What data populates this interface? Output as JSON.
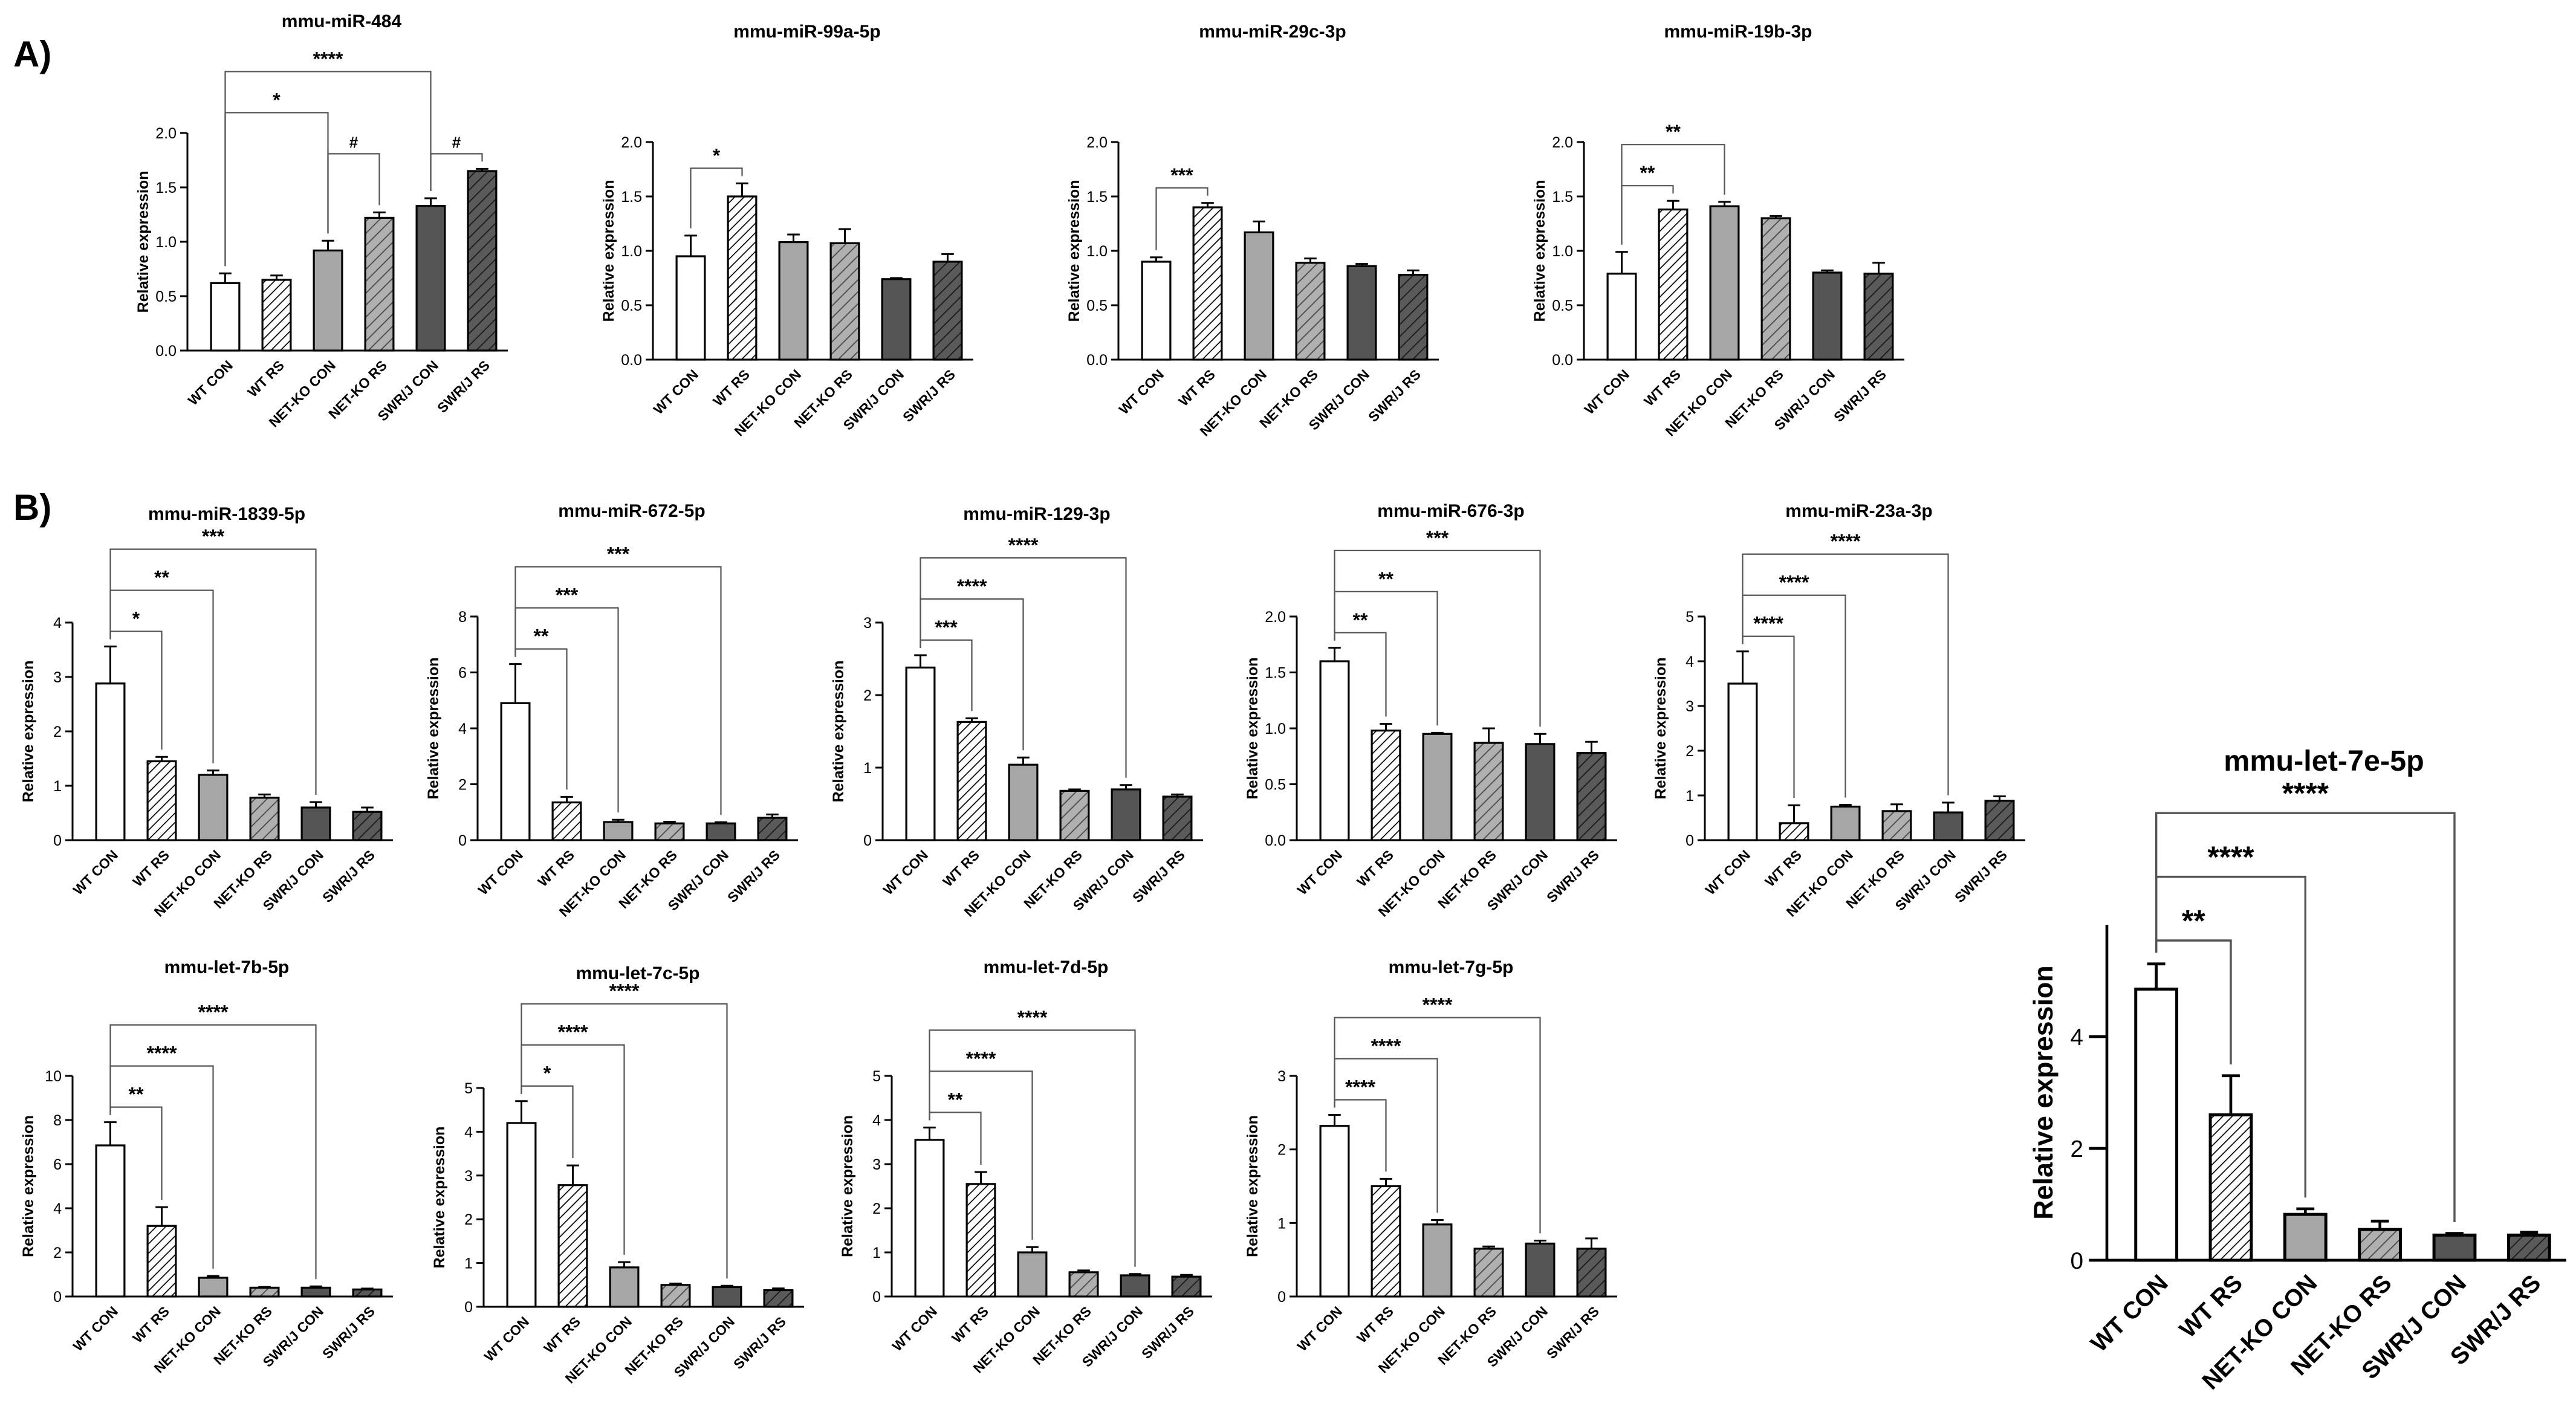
{
  "panel_labels": [
    "A)",
    "B)"
  ],
  "patterns": {
    "WT CON": {
      "fill": "#ffffff",
      "hatch": null,
      "hatch_color": null
    },
    "WT RS": {
      "fill": "#ffffff",
      "hatch": "dense",
      "hatch_color": "#000000"
    },
    "NET-KO CON": {
      "fill": "#a6a6a6",
      "hatch": null,
      "hatch_color": null
    },
    "NET-KO RS": {
      "fill": "#b0b0b0",
      "hatch": "normal",
      "hatch_color": "#4a4a4a"
    },
    "SWR/J CON": {
      "fill": "#555555",
      "hatch": null,
      "hatch_color": null
    },
    "SWR/J RS": {
      "fill": "#5a5a5a",
      "hatch": "normal",
      "hatch_color": "#1a1a1a"
    }
  },
  "chart_data": [
    {
      "type": "bar",
      "title": "mmu-miR-484",
      "ylabel": "Relative expression",
      "categories": [
        "WT CON",
        "WT RS",
        "NET-KO CON",
        "NET-KO RS",
        "SWR/J CON",
        "SWR/J RS"
      ],
      "values": [
        0.62,
        0.65,
        0.92,
        1.22,
        1.33,
        1.65
      ],
      "errors": [
        0.09,
        0.04,
        0.09,
        0.05,
        0.07,
        0.02
      ],
      "ylim": [
        0,
        2.0
      ],
      "yticks": [
        "0.0",
        "0.5",
        "1.0",
        "1.5",
        "2.0"
      ],
      "annotations": [
        {
          "from": 0,
          "to": 2,
          "label": "*",
          "level": 2
        },
        {
          "from": 2,
          "to": 3,
          "label": "#",
          "level": 1
        },
        {
          "from": 0,
          "to": 4,
          "label": "****",
          "level": 3
        },
        {
          "from": 4,
          "to": 5,
          "label": "#",
          "level": 1
        }
      ]
    },
    {
      "type": "bar",
      "title": "mmu-miR-99a-5p",
      "ylabel": "Relative expression",
      "categories": [
        "WT CON",
        "WT RS",
        "NET-KO CON",
        "NET-KO RS",
        "SWR/J CON",
        "SWR/J RS"
      ],
      "values": [
        0.95,
        1.5,
        1.08,
        1.07,
        0.74,
        0.9
      ],
      "errors": [
        0.19,
        0.12,
        0.07,
        0.13,
        0.01,
        0.07
      ],
      "ylim": [
        0,
        2.0
      ],
      "yticks": [
        "0.0",
        "0.5",
        "1.0",
        "1.5",
        "2.0"
      ],
      "annotations": [
        {
          "from": 0,
          "to": 1,
          "label": "*",
          "level": 1
        }
      ]
    },
    {
      "type": "bar",
      "title": "mmu-miR-29c-3p",
      "ylabel": "Relative expression",
      "categories": [
        "WT CON",
        "WT RS",
        "NET-KO CON",
        "NET-KO RS",
        "SWR/J CON",
        "SWR/J RS"
      ],
      "values": [
        0.9,
        1.4,
        1.17,
        0.89,
        0.86,
        0.78
      ],
      "errors": [
        0.04,
        0.04,
        0.1,
        0.04,
        0.02,
        0.04
      ],
      "ylim": [
        0,
        2.0
      ],
      "yticks": [
        "0.0",
        "0.5",
        "1.0",
        "1.5",
        "2.0"
      ],
      "annotations": [
        {
          "from": 0,
          "to": 1,
          "label": "***",
          "level": 1
        }
      ]
    },
    {
      "type": "bar",
      "title": "mmu-miR-19b-3p",
      "ylabel": "Relative expression",
      "categories": [
        "WT CON",
        "WT RS",
        "NET-KO CON",
        "NET-KO RS",
        "SWR/J CON",
        "SWR/J RS"
      ],
      "values": [
        0.79,
        1.38,
        1.41,
        1.3,
        0.8,
        0.79
      ],
      "errors": [
        0.2,
        0.08,
        0.04,
        0.02,
        0.02,
        0.1
      ],
      "ylim": [
        0,
        2.0
      ],
      "yticks": [
        "0.0",
        "0.5",
        "1.0",
        "1.5",
        "2.0"
      ],
      "annotations": [
        {
          "from": 0,
          "to": 1,
          "label": "**",
          "level": 1
        },
        {
          "from": 0,
          "to": 2,
          "label": "**",
          "level": 2
        }
      ]
    },
    {
      "type": "bar",
      "title": "mmu-miR-1839-5p",
      "ylabel": "Relative expression",
      "categories": [
        "WT CON",
        "WT RS",
        "NET-KO CON",
        "NET-KO RS",
        "SWR/J CON",
        "SWR/J RS"
      ],
      "values": [
        2.88,
        1.45,
        1.2,
        0.78,
        0.6,
        0.52
      ],
      "errors": [
        0.68,
        0.08,
        0.08,
        0.06,
        0.1,
        0.08
      ],
      "ylim": [
        0,
        4
      ],
      "yticks": [
        "0",
        "1",
        "2",
        "3",
        "4"
      ],
      "annotations": [
        {
          "from": 0,
          "to": 1,
          "label": "*",
          "level": 1
        },
        {
          "from": 0,
          "to": 2,
          "label": "**",
          "level": 2
        },
        {
          "from": 0,
          "to": 4,
          "label": "***",
          "level": 3
        }
      ]
    },
    {
      "type": "bar",
      "title": "mmu-miR-672-5p",
      "ylabel": "Relative expression",
      "categories": [
        "WT CON",
        "WT RS",
        "NET-KO CON",
        "NET-KO RS",
        "SWR/J CON",
        "SWR/J RS"
      ],
      "values": [
        4.9,
        1.35,
        0.65,
        0.6,
        0.6,
        0.8
      ],
      "errors": [
        1.4,
        0.2,
        0.08,
        0.06,
        0.04,
        0.12
      ],
      "ylim": [
        0,
        8
      ],
      "yticks": [
        "0",
        "2",
        "4",
        "6",
        "8"
      ],
      "annotations": [
        {
          "from": 0,
          "to": 1,
          "label": "**",
          "level": 1
        },
        {
          "from": 0,
          "to": 2,
          "label": "***",
          "level": 2
        },
        {
          "from": 0,
          "to": 4,
          "label": "***",
          "level": 3
        }
      ]
    },
    {
      "type": "bar",
      "title": "mmu-miR-129-3p",
      "ylabel": "Relative expression",
      "categories": [
        "WT CON",
        "WT RS",
        "NET-KO CON",
        "NET-KO RS",
        "SWR/J CON",
        "SWR/J RS"
      ],
      "values": [
        2.38,
        1.63,
        1.04,
        0.68,
        0.7,
        0.6
      ],
      "errors": [
        0.17,
        0.05,
        0.1,
        0.02,
        0.06,
        0.03
      ],
      "ylim": [
        0,
        3
      ],
      "yticks": [
        "0",
        "1",
        "2",
        "3"
      ],
      "annotations": [
        {
          "from": 0,
          "to": 1,
          "label": "***",
          "level": 1
        },
        {
          "from": 0,
          "to": 2,
          "label": "****",
          "level": 2
        },
        {
          "from": 0,
          "to": 4,
          "label": "****",
          "level": 3
        }
      ]
    },
    {
      "type": "bar",
      "title": "mmu-miR-676-3p",
      "ylabel": "Relative expression",
      "categories": [
        "WT CON",
        "WT RS",
        "NET-KO CON",
        "NET-KO RS",
        "SWR/J CON",
        "SWR/J RS"
      ],
      "values": [
        1.6,
        0.98,
        0.95,
        0.87,
        0.86,
        0.78
      ],
      "errors": [
        0.12,
        0.06,
        0.01,
        0.13,
        0.09,
        0.1
      ],
      "ylim": [
        0,
        2.0
      ],
      "yticks": [
        "0.0",
        "0.5",
        "1.0",
        "1.5",
        "2.0"
      ],
      "annotations": [
        {
          "from": 0,
          "to": 1,
          "label": "**",
          "level": 1
        },
        {
          "from": 0,
          "to": 2,
          "label": "**",
          "level": 2
        },
        {
          "from": 0,
          "to": 4,
          "label": "***",
          "level": 3
        }
      ]
    },
    {
      "type": "bar",
      "title": "mmu-miR-23a-3p",
      "ylabel": "Relative expression",
      "categories": [
        "WT CON",
        "WT RS",
        "NET-KO CON",
        "NET-KO RS",
        "SWR/J CON",
        "SWR/J RS"
      ],
      "values": [
        3.5,
        0.38,
        0.75,
        0.65,
        0.62,
        0.88
      ],
      "errors": [
        0.72,
        0.4,
        0.04,
        0.15,
        0.22,
        0.1
      ],
      "ylim": [
        0,
        5
      ],
      "yticks": [
        "0",
        "1",
        "2",
        "3",
        "4",
        "5"
      ],
      "annotations": [
        {
          "from": 0,
          "to": 1,
          "label": "****",
          "level": 1
        },
        {
          "from": 0,
          "to": 2,
          "label": "****",
          "level": 2
        },
        {
          "from": 0,
          "to": 4,
          "label": "****",
          "level": 3
        }
      ]
    },
    {
      "type": "bar",
      "title": "mmu-let-7b-5p",
      "ylabel": "Relative expression",
      "categories": [
        "WT CON",
        "WT RS",
        "NET-KO CON",
        "NET-KO RS",
        "SWR/J CON",
        "SWR/J RS"
      ],
      "values": [
        6.85,
        3.2,
        0.85,
        0.4,
        0.4,
        0.32
      ],
      "errors": [
        1.05,
        0.85,
        0.08,
        0.03,
        0.06,
        0.04
      ],
      "ylim": [
        0,
        10
      ],
      "yticks": [
        "0",
        "2",
        "4",
        "6",
        "8",
        "10"
      ],
      "annotations": [
        {
          "from": 0,
          "to": 1,
          "label": "**",
          "level": 1
        },
        {
          "from": 0,
          "to": 2,
          "label": "****",
          "level": 2
        },
        {
          "from": 0,
          "to": 4,
          "label": "****",
          "level": 3
        }
      ]
    },
    {
      "type": "bar",
      "title": "mmu-let-7c-5p",
      "ylabel": "Relative expression",
      "categories": [
        "WT CON",
        "WT RS",
        "NET-KO CON",
        "NET-KO RS",
        "SWR/J CON",
        "SWR/J RS"
      ],
      "values": [
        4.2,
        2.78,
        0.9,
        0.5,
        0.45,
        0.38
      ],
      "errors": [
        0.5,
        0.45,
        0.12,
        0.03,
        0.03,
        0.04
      ],
      "ylim": [
        0,
        5
      ],
      "yticks": [
        "0",
        "1",
        "2",
        "3",
        "4",
        "5"
      ],
      "annotations": [
        {
          "from": 0,
          "to": 1,
          "label": "*",
          "level": 1
        },
        {
          "from": 0,
          "to": 2,
          "label": "****",
          "level": 2
        },
        {
          "from": 0,
          "to": 4,
          "label": "****",
          "level": 3
        }
      ]
    },
    {
      "type": "bar",
      "title": "mmu-let-7d-5p",
      "ylabel": "Relative expression",
      "categories": [
        "WT CON",
        "WT RS",
        "NET-KO CON",
        "NET-KO RS",
        "SWR/J CON",
        "SWR/J RS"
      ],
      "values": [
        3.55,
        2.55,
        1.0,
        0.55,
        0.48,
        0.45
      ],
      "errors": [
        0.28,
        0.27,
        0.12,
        0.04,
        0.03,
        0.04
      ],
      "ylim": [
        0,
        5
      ],
      "yticks": [
        "0",
        "1",
        "2",
        "3",
        "4",
        "5"
      ],
      "annotations": [
        {
          "from": 0,
          "to": 1,
          "label": "**",
          "level": 1
        },
        {
          "from": 0,
          "to": 2,
          "label": "****",
          "level": 2
        },
        {
          "from": 0,
          "to": 4,
          "label": "****",
          "level": 3
        }
      ]
    },
    {
      "type": "bar",
      "title": "mmu-let-7g-5p",
      "ylabel": "Relative expression",
      "categories": [
        "WT CON",
        "WT RS",
        "NET-KO CON",
        "NET-KO RS",
        "SWR/J CON",
        "SWR/J RS"
      ],
      "values": [
        2.32,
        1.5,
        0.98,
        0.65,
        0.72,
        0.65
      ],
      "errors": [
        0.15,
        0.1,
        0.06,
        0.03,
        0.04,
        0.14
      ],
      "ylim": [
        0,
        3
      ],
      "yticks": [
        "0",
        "1",
        "2",
        "3"
      ],
      "annotations": [
        {
          "from": 0,
          "to": 1,
          "label": "****",
          "level": 1
        },
        {
          "from": 0,
          "to": 2,
          "label": "****",
          "level": 2
        },
        {
          "from": 0,
          "to": 4,
          "label": "****",
          "level": 3
        }
      ]
    },
    {
      "type": "bar",
      "title": "mmu-let-7e-5p",
      "ylabel": "Relative expression",
      "categories": [
        "WT CON",
        "WT RS",
        "NET-KO CON",
        "NET-KO RS",
        "SWR/J CON",
        "SWR/J RS"
      ],
      "values": [
        4.85,
        2.6,
        0.82,
        0.55,
        0.45,
        0.45
      ],
      "errors": [
        0.45,
        0.7,
        0.1,
        0.15,
        0.03,
        0.05
      ],
      "ylim": [
        0,
        6
      ],
      "yticks": [
        "0",
        "2",
        "4"
      ],
      "annotations": [
        {
          "from": 0,
          "to": 1,
          "label": "**",
          "level": 1
        },
        {
          "from": 0,
          "to": 2,
          "label": "****",
          "level": 2
        },
        {
          "from": 0,
          "to": 4,
          "label": "****",
          "level": 3
        }
      ]
    }
  ]
}
